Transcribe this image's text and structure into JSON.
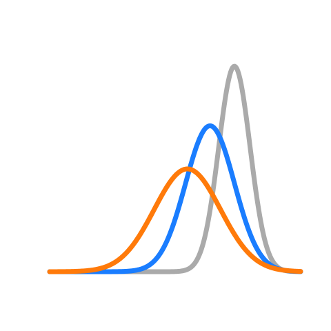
{
  "chart_data": {
    "type": "line",
    "title": "",
    "xlabel": "",
    "ylabel": "",
    "axes_visible": false,
    "grid": false,
    "legend": "none",
    "xlim": [
      -4,
      3.2
    ],
    "ylim": [
      0,
      1
    ],
    "series": [
      {
        "key": "gray",
        "color": "#aaaaaa",
        "shape": "normal",
        "mean": 1.3,
        "sd": 0.45,
        "peak": 1.0
      },
      {
        "key": "blue",
        "color": "#1a7dff",
        "shape": "normal",
        "mean": 0.6,
        "sd": 0.7,
        "peak": 0.71
      },
      {
        "key": "orange",
        "color": "#ff7a0a",
        "shape": "normal",
        "mean": -0.05,
        "sd": 0.95,
        "peak": 0.5
      }
    ]
  }
}
